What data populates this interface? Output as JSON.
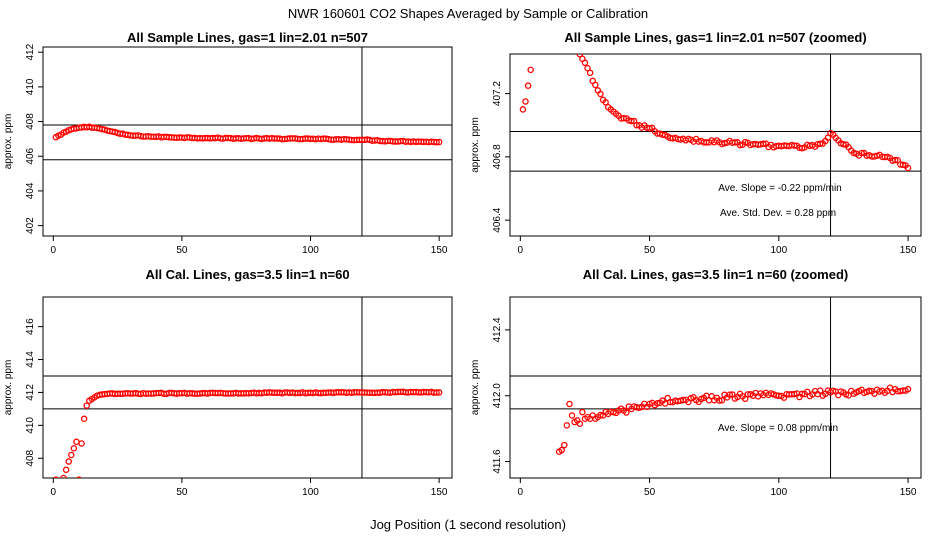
{
  "title": "NWR  160601  CO2 Shapes Averaged by Sample or Calibration",
  "shared_xlabel": "Jog Position (1 second resolution)",
  "colors": {
    "points": "#ff0000",
    "lines": "#000000",
    "background": "#ffffff"
  },
  "chart_data": [
    {
      "type": "scatter",
      "title": "All Sample Lines, gas=1 lin=2.01 n=507",
      "ylabel": "approx. ppm",
      "xlim": [
        -4,
        155
      ],
      "ylim": [
        401.4,
        412.3
      ],
      "xticks": [
        0,
        50,
        100,
        150
      ],
      "yticks": [
        402,
        404,
        406,
        408,
        410,
        412
      ],
      "hlines": [
        407.8,
        405.8
      ],
      "vlines": [
        120
      ],
      "annotations": [],
      "series_keypoints": {
        "x": [
          1,
          3,
          6,
          10,
          14,
          18,
          22,
          26,
          30,
          40,
          50,
          60,
          80,
          100,
          110,
          120,
          130,
          140,
          150
        ],
        "y": [
          407.1,
          407.25,
          407.5,
          407.65,
          407.7,
          407.6,
          407.45,
          407.3,
          407.2,
          407.12,
          407.08,
          407.05,
          407.02,
          407.0,
          406.98,
          406.95,
          406.88,
          406.85,
          406.82
        ]
      }
    },
    {
      "type": "scatter",
      "title": "All Sample Lines, gas=1 lin=2.01 n=507 (zoomed)",
      "ylabel": "approx. ppm",
      "xlim": [
        -4,
        155
      ],
      "ylim": [
        406.3,
        407.45
      ],
      "xticks": [
        0,
        50,
        100,
        150
      ],
      "yticks": [
        406.4,
        406.8,
        407.2
      ],
      "ytick_labels": [
        "406.4",
        "406.8",
        "407.2"
      ],
      "hlines": [
        406.96,
        406.71
      ],
      "vlines": [
        120
      ],
      "annotations": [
        "Ave. Slope =  -0.22  ppm/min",
        "Ave. Std. Dev. =  0.28  ppm"
      ],
      "series_keypoints": {
        "x": [
          1,
          2,
          3,
          4,
          5,
          20,
          24,
          26,
          28,
          30,
          32,
          35,
          38,
          42,
          46,
          50,
          55,
          60,
          70,
          80,
          90,
          100,
          110,
          115,
          118,
          120,
          122,
          125,
          128,
          130,
          135,
          140,
          145,
          148,
          150
        ],
        "y": [
          407.1,
          407.15,
          407.25,
          407.35,
          407.48,
          407.52,
          407.42,
          407.36,
          407.28,
          407.22,
          407.16,
          407.1,
          407.06,
          407.03,
          407.0,
          406.98,
          406.94,
          406.92,
          406.9,
          406.89,
          406.88,
          406.87,
          406.86,
          406.88,
          406.9,
          406.95,
          406.92,
          406.88,
          406.84,
          406.82,
          406.81,
          406.8,
          406.78,
          406.75,
          406.73
        ]
      }
    },
    {
      "type": "scatter",
      "title": "All Cal. Lines, gas=3.5 lin=1 n=60",
      "ylabel": "approx. ppm",
      "xlim": [
        -4,
        155
      ],
      "ylim": [
        406.8,
        417.8
      ],
      "xticks": [
        0,
        50,
        100,
        150
      ],
      "yticks": [
        408,
        410,
        412,
        414,
        416
      ],
      "hlines": [
        413.0,
        411.0
      ],
      "vlines": [
        120
      ],
      "annotations": [],
      "series_keypoints": {
        "x": [
          1,
          2,
          3,
          4,
          5,
          6,
          7,
          8,
          9,
          10,
          11,
          12,
          13,
          14,
          15,
          16,
          17,
          18,
          19,
          20,
          25,
          30,
          50,
          80,
          100,
          120,
          140,
          150
        ],
        "y": [
          406.7,
          406.2,
          406.5,
          406.8,
          407.3,
          407.8,
          408.2,
          408.6,
          409.0,
          406.7,
          408.9,
          410.4,
          411.2,
          411.5,
          411.6,
          411.7,
          411.8,
          411.85,
          411.88,
          411.9,
          411.92,
          411.93,
          411.95,
          411.97,
          411.98,
          412.0,
          412.02,
          412.0
        ]
      }
    },
    {
      "type": "scatter",
      "title": "All Cal. Lines, gas=3.5 lin=1 n=60 (zoomed)",
      "ylabel": "approx. ppm",
      "xlim": [
        -4,
        155
      ],
      "ylim": [
        411.5,
        412.6
      ],
      "xticks": [
        0,
        50,
        100,
        150
      ],
      "yticks": [
        411.6,
        412.0,
        412.4
      ],
      "ytick_labels": [
        "411.6",
        "412.0",
        "412.4"
      ],
      "hlines": [
        412.12,
        411.92
      ],
      "vlines": [
        120
      ],
      "annotations": [
        "Ave. Slope =  0.08  ppm/min"
      ],
      "series_keypoints": {
        "x": [
          15,
          16,
          17,
          18,
          19,
          20,
          21,
          22,
          23,
          24,
          25,
          26,
          27,
          28,
          29,
          30,
          32,
          34,
          36,
          38,
          40,
          45,
          50,
          55,
          60,
          70,
          80,
          90,
          100,
          110,
          120,
          125,
          130,
          135,
          140,
          145,
          150
        ],
        "y": [
          411.66,
          411.67,
          411.7,
          411.82,
          411.95,
          411.88,
          411.84,
          411.85,
          411.83,
          411.9,
          411.86,
          411.87,
          411.86,
          411.88,
          411.86,
          411.87,
          411.88,
          411.89,
          411.9,
          411.91,
          411.91,
          411.93,
          411.95,
          411.97,
          411.97,
          411.98,
          411.99,
          412.0,
          412.0,
          412.01,
          412.02,
          412.02,
          412.02,
          412.03,
          412.03,
          412.04,
          412.04
        ]
      }
    }
  ]
}
